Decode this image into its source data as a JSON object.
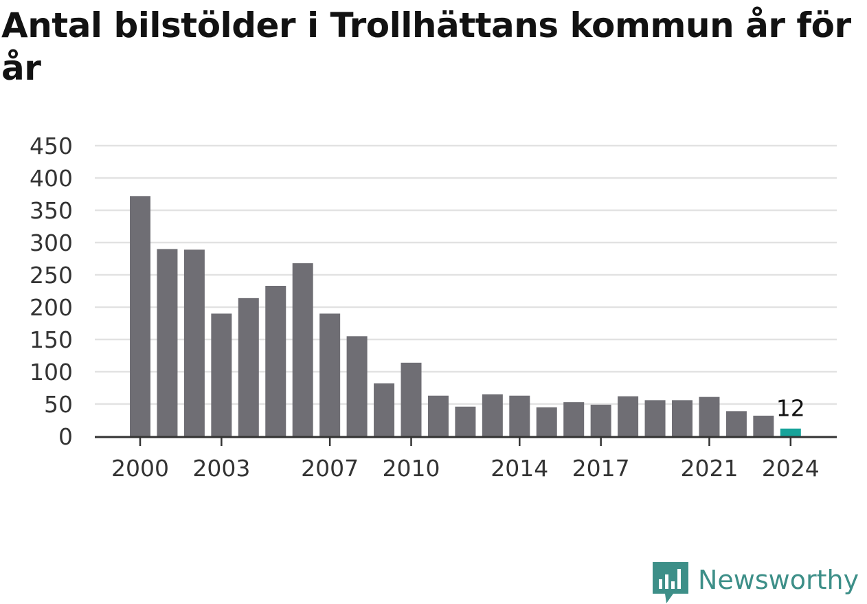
{
  "title": "Antal bilstölder i Trollhättans kommun år för år",
  "chart_data": {
    "type": "bar",
    "categories": [
      "2000",
      "2001",
      "2002",
      "2003",
      "2004",
      "2005",
      "2006",
      "2007",
      "2008",
      "2009",
      "2010",
      "2011",
      "2012",
      "2013",
      "2014",
      "2015",
      "2016",
      "2017",
      "2018",
      "2019",
      "2020",
      "2021",
      "2022",
      "2023",
      "2024"
    ],
    "values": [
      372,
      290,
      289,
      190,
      214,
      233,
      268,
      190,
      155,
      82,
      114,
      63,
      46,
      65,
      63,
      45,
      53,
      49,
      62,
      56,
      56,
      61,
      39,
      32,
      12
    ],
    "xticks": [
      "2000",
      "2003",
      "2007",
      "2010",
      "2014",
      "2017",
      "2021",
      "2024"
    ],
    "yticks": [
      0,
      50,
      100,
      150,
      200,
      250,
      300,
      350,
      400,
      450
    ],
    "ylim": [
      0,
      450
    ],
    "grid": true,
    "highlight": {
      "category": "2024",
      "label": "12"
    },
    "colors": {
      "bar": "#6f6e74",
      "highlight": "#17a39a",
      "grid": "#e2e2e2",
      "axis": "#333333"
    }
  },
  "logo": {
    "text": "Newsworthy",
    "color": "#3d8f88"
  }
}
